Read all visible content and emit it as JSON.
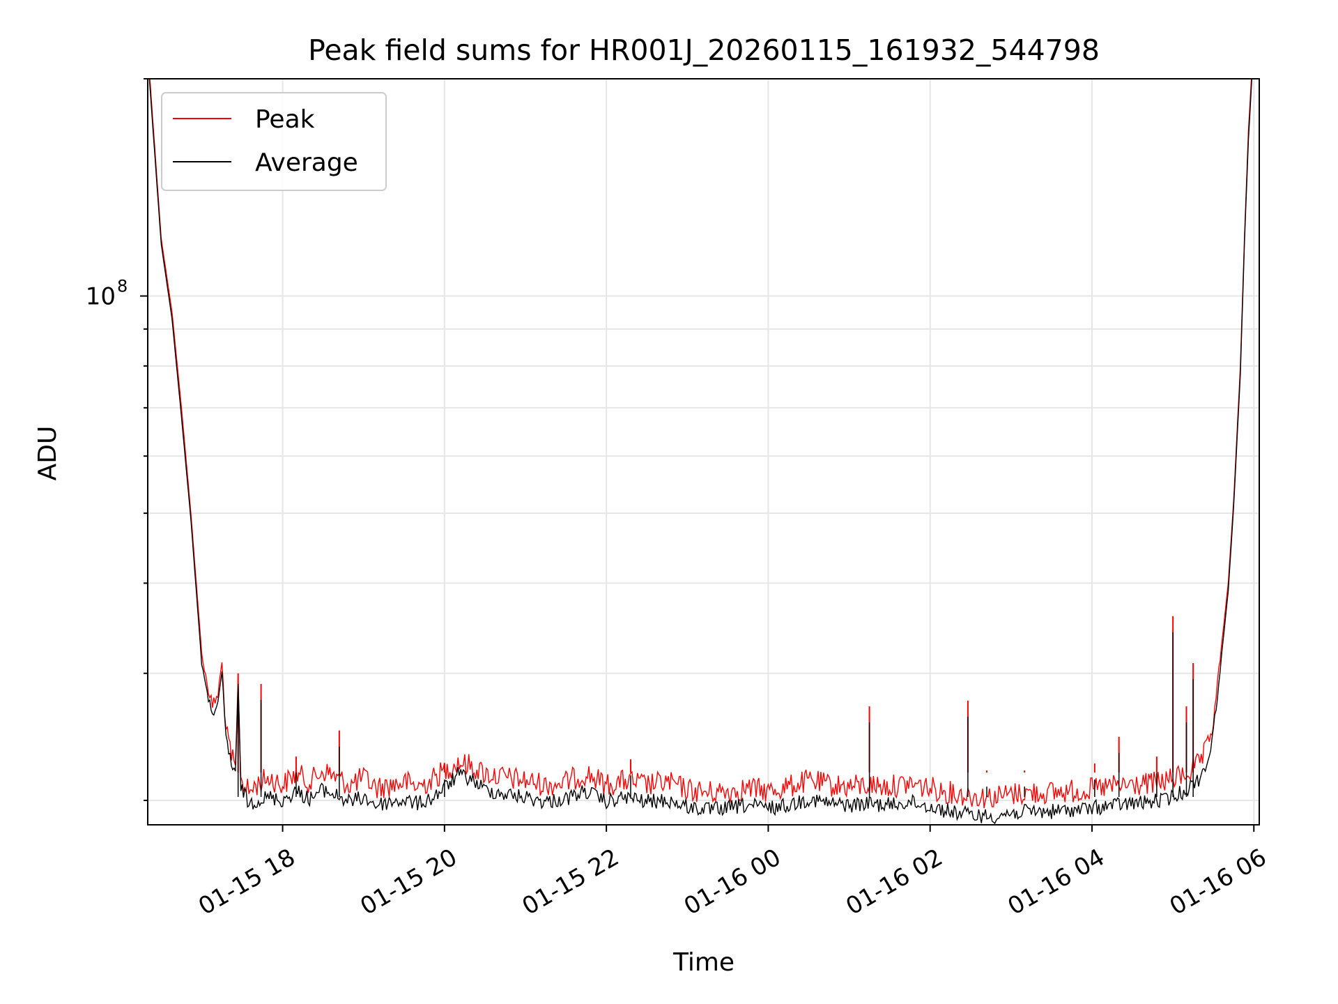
{
  "chart_data": {
    "type": "line",
    "title": "Peak field sums for HR001J_20260115_161932_544798",
    "xlabel": "Time",
    "ylabel": "ADU",
    "y_scale": "log",
    "ylim": [
      18500000,
      200000000
    ],
    "xlim": [
      "2026-01-15 16:20",
      "2026-01-16 06:04"
    ],
    "grid": true,
    "legend_position": "top-left",
    "x_ticks": [
      {
        "t": "2026-01-15 18:00",
        "label": "01-15 18"
      },
      {
        "t": "2026-01-15 20:00",
        "label": "01-15 20"
      },
      {
        "t": "2026-01-15 22:00",
        "label": "01-15 22"
      },
      {
        "t": "2026-01-16 00:00",
        "label": "01-16 00"
      },
      {
        "t": "2026-01-16 02:00",
        "label": "01-16 02"
      },
      {
        "t": "2026-01-16 04:00",
        "label": "01-16 04"
      },
      {
        "t": "2026-01-16 06:00",
        "label": "01-16 06"
      }
    ],
    "y_major_ticks": [
      {
        "value": 100000000,
        "base": "10",
        "exp": "8"
      }
    ],
    "y_minor_ticks": [
      20000000,
      30000000,
      40000000,
      50000000,
      60000000,
      70000000,
      80000000,
      90000000,
      200000000
    ],
    "series": [
      {
        "name": "Peak",
        "color": "#ff0000",
        "points": [
          [
            "2026-01-15 16:20",
            220000000
          ],
          [
            "2026-01-15 16:30",
            120000000
          ],
          [
            "2026-01-15 16:38",
            95000000
          ],
          [
            "2026-01-15 16:45",
            70000000
          ],
          [
            "2026-01-15 16:52",
            50000000
          ],
          [
            "2026-01-15 16:56",
            40000000
          ],
          [
            "2026-01-15 17:00",
            32000000
          ],
          [
            "2026-01-15 17:04",
            29000000
          ],
          [
            "2026-01-15 17:08",
            27000000
          ],
          [
            "2026-01-15 17:12",
            28000000
          ],
          [
            "2026-01-15 17:15",
            31000000
          ],
          [
            "2026-01-15 17:18",
            25000000
          ],
          [
            "2026-01-15 17:22",
            23000000
          ],
          [
            "2026-01-15 17:25",
            22000000
          ],
          [
            "2026-01-15 17:27",
            29500000
          ],
          [
            "2026-01-15 17:29",
            21500000
          ],
          [
            "2026-01-15 17:32",
            21000000
          ],
          [
            "2026-01-15 17:35",
            20500000
          ],
          [
            "2026-01-15 17:40",
            21000000
          ],
          [
            "2026-01-15 17:50",
            21500000
          ],
          [
            "2026-01-15 18:00",
            21000000
          ],
          [
            "2026-01-15 18:10",
            21800000
          ],
          [
            "2026-01-15 18:20",
            21200000
          ],
          [
            "2026-01-15 18:30",
            22000000
          ],
          [
            "2026-01-15 18:40",
            21500000
          ],
          [
            "2026-01-15 18:50",
            21000000
          ],
          [
            "2026-01-15 19:00",
            21500000
          ],
          [
            "2026-01-15 19:10",
            20800000
          ],
          [
            "2026-01-15 19:20",
            21000000
          ],
          [
            "2026-01-15 19:30",
            21200000
          ],
          [
            "2026-01-15 19:40",
            20900000
          ],
          [
            "2026-01-15 19:50",
            21300000
          ],
          [
            "2026-01-15 20:00",
            22000000
          ],
          [
            "2026-01-15 20:10",
            22600000
          ],
          [
            "2026-01-15 20:20",
            22300000
          ],
          [
            "2026-01-15 20:30",
            21800000
          ],
          [
            "2026-01-15 20:45",
            21500000
          ],
          [
            "2026-01-15 21:00",
            21300000
          ],
          [
            "2026-01-15 21:15",
            21000000
          ],
          [
            "2026-01-15 21:30",
            21200000
          ],
          [
            "2026-01-15 21:45",
            21800000
          ],
          [
            "2026-01-15 22:00",
            21000000
          ],
          [
            "2026-01-15 22:15",
            21300000
          ],
          [
            "2026-01-15 22:30",
            21000000
          ],
          [
            "2026-01-15 22:45",
            21200000
          ],
          [
            "2026-01-15 23:00",
            20700000
          ],
          [
            "2026-01-15 23:15",
            20500000
          ],
          [
            "2026-01-15 23:30",
            20600000
          ],
          [
            "2026-01-15 23:45",
            20800000
          ],
          [
            "2026-01-16 00:00",
            20600000
          ],
          [
            "2026-01-16 00:15",
            20900000
          ],
          [
            "2026-01-16 00:30",
            21300000
          ],
          [
            "2026-01-16 00:45",
            21000000
          ],
          [
            "2026-01-16 01:00",
            20900000
          ],
          [
            "2026-01-16 01:15",
            21000000
          ],
          [
            "2026-01-16 01:30",
            20900000
          ],
          [
            "2026-01-16 01:45",
            21100000
          ],
          [
            "2026-01-16 02:00",
            20800000
          ],
          [
            "2026-01-16 02:15",
            20500000
          ],
          [
            "2026-01-16 02:30",
            20300000
          ],
          [
            "2026-01-16 02:45",
            20200000
          ],
          [
            "2026-01-16 03:00",
            20400000
          ],
          [
            "2026-01-16 03:15",
            20500000
          ],
          [
            "2026-01-16 03:30",
            20500000
          ],
          [
            "2026-01-16 03:45",
            20600000
          ],
          [
            "2026-01-16 04:00",
            20700000
          ],
          [
            "2026-01-16 04:15",
            20900000
          ],
          [
            "2026-01-16 04:30",
            21000000
          ],
          [
            "2026-01-16 04:45",
            21100000
          ],
          [
            "2026-01-16 05:00",
            21400000
          ],
          [
            "2026-01-16 05:10",
            21800000
          ],
          [
            "2026-01-16 05:20",
            22500000
          ],
          [
            "2026-01-16 05:25",
            23500000
          ],
          [
            "2026-01-16 05:29",
            25000000
          ],
          [
            "2026-01-16 05:33",
            29000000
          ],
          [
            "2026-01-16 05:37",
            34000000
          ],
          [
            "2026-01-16 05:41",
            40000000
          ],
          [
            "2026-01-16 05:45",
            52000000
          ],
          [
            "2026-01-16 05:50",
            80000000
          ],
          [
            "2026-01-16 05:53",
            120000000
          ],
          [
            "2026-01-16 05:56",
            170000000
          ],
          [
            "2026-01-16 06:00",
            230000000
          ]
        ],
        "spikes": [
          [
            "2026-01-15 17:27",
            30000000
          ],
          [
            "2026-01-15 17:44",
            29000000
          ],
          [
            "2026-01-15 18:10",
            23000000
          ],
          [
            "2026-01-15 18:42",
            25000000
          ],
          [
            "2026-01-15 20:00",
            22500000
          ],
          [
            "2026-01-15 22:18",
            22800000
          ],
          [
            "2026-01-16 01:15",
            27000000
          ],
          [
            "2026-01-16 02:28",
            27500000
          ],
          [
            "2026-01-16 02:42",
            22000000
          ],
          [
            "2026-01-16 03:10",
            22000000
          ],
          [
            "2026-01-16 04:02",
            22500000
          ],
          [
            "2026-01-16 04:20",
            24500000
          ],
          [
            "2026-01-16 04:48",
            23000000
          ],
          [
            "2026-01-16 05:00",
            36000000
          ],
          [
            "2026-01-16 05:10",
            27000000
          ],
          [
            "2026-01-16 05:15",
            31000000
          ]
        ]
      },
      {
        "name": "Average",
        "color": "#000000",
        "points": [
          [
            "2026-01-15 16:20",
            215000000
          ],
          [
            "2026-01-15 16:30",
            118000000
          ],
          [
            "2026-01-15 16:38",
            93000000
          ],
          [
            "2026-01-15 16:45",
            68000000
          ],
          [
            "2026-01-15 16:52",
            49000000
          ],
          [
            "2026-01-15 16:56",
            39000000
          ],
          [
            "2026-01-15 17:00",
            31000000
          ],
          [
            "2026-01-15 17:04",
            28000000
          ],
          [
            "2026-01-15 17:08",
            26500000
          ],
          [
            "2026-01-15 17:12",
            27000000
          ],
          [
            "2026-01-15 17:15",
            30000000
          ],
          [
            "2026-01-15 17:18",
            24500000
          ],
          [
            "2026-01-15 17:22",
            22500000
          ],
          [
            "2026-01-15 17:25",
            21500000
          ],
          [
            "2026-01-15 17:27",
            29000000
          ],
          [
            "2026-01-15 17:29",
            21000000
          ],
          [
            "2026-01-15 17:32",
            20300000
          ],
          [
            "2026-01-15 17:35",
            19800000
          ],
          [
            "2026-01-15 17:40",
            20000000
          ],
          [
            "2026-01-15 17:50",
            20200000
          ],
          [
            "2026-01-15 18:00",
            20000000
          ],
          [
            "2026-01-15 18:10",
            20600000
          ],
          [
            "2026-01-15 18:20",
            20100000
          ],
          [
            "2026-01-15 18:30",
            20700000
          ],
          [
            "2026-01-15 18:40",
            20300000
          ],
          [
            "2026-01-15 18:50",
            19900000
          ],
          [
            "2026-01-15 19:00",
            20200000
          ],
          [
            "2026-01-15 19:10",
            19700000
          ],
          [
            "2026-01-15 19:20",
            19900000
          ],
          [
            "2026-01-15 19:30",
            20000000
          ],
          [
            "2026-01-15 19:40",
            19800000
          ],
          [
            "2026-01-15 19:50",
            20100000
          ],
          [
            "2026-01-15 20:00",
            20800000
          ],
          [
            "2026-01-15 20:10",
            21700000
          ],
          [
            "2026-01-15 20:20",
            21400000
          ],
          [
            "2026-01-15 20:30",
            20700000
          ],
          [
            "2026-01-15 20:45",
            20400000
          ],
          [
            "2026-01-15 21:00",
            20200000
          ],
          [
            "2026-01-15 21:15",
            19900000
          ],
          [
            "2026-01-15 21:30",
            20100000
          ],
          [
            "2026-01-15 21:45",
            20600000
          ],
          [
            "2026-01-15 22:00",
            19900000
          ],
          [
            "2026-01-15 22:15",
            20200000
          ],
          [
            "2026-01-15 22:30",
            19900000
          ],
          [
            "2026-01-15 22:45",
            20000000
          ],
          [
            "2026-01-15 23:00",
            19600000
          ],
          [
            "2026-01-15 23:15",
            19400000
          ],
          [
            "2026-01-15 23:30",
            19500000
          ],
          [
            "2026-01-15 23:45",
            19700000
          ],
          [
            "2026-01-16 00:00",
            19500000
          ],
          [
            "2026-01-16 00:15",
            19700000
          ],
          [
            "2026-01-16 00:30",
            20100000
          ],
          [
            "2026-01-16 00:45",
            19800000
          ],
          [
            "2026-01-16 01:00",
            19700000
          ],
          [
            "2026-01-16 01:15",
            19800000
          ],
          [
            "2026-01-16 01:30",
            19700000
          ],
          [
            "2026-01-16 01:45",
            19900000
          ],
          [
            "2026-01-16 02:00",
            19600000
          ],
          [
            "2026-01-16 02:15",
            19300000
          ],
          [
            "2026-01-16 02:30",
            19100000
          ],
          [
            "2026-01-16 02:45",
            19000000
          ],
          [
            "2026-01-16 03:00",
            19200000
          ],
          [
            "2026-01-16 03:15",
            19300000
          ],
          [
            "2026-01-16 03:30",
            19300000
          ],
          [
            "2026-01-16 03:45",
            19400000
          ],
          [
            "2026-01-16 04:00",
            19500000
          ],
          [
            "2026-01-16 04:15",
            19700000
          ],
          [
            "2026-01-16 04:30",
            19800000
          ],
          [
            "2026-01-16 04:45",
            19900000
          ],
          [
            "2026-01-16 05:00",
            20200000
          ],
          [
            "2026-01-16 05:10",
            20700000
          ],
          [
            "2026-01-16 05:20",
            21500000
          ],
          [
            "2026-01-16 05:25",
            22500000
          ],
          [
            "2026-01-16 05:29",
            24000000
          ],
          [
            "2026-01-16 05:33",
            28000000
          ],
          [
            "2026-01-16 05:37",
            33000000
          ],
          [
            "2026-01-16 05:41",
            39000000
          ],
          [
            "2026-01-16 05:45",
            51000000
          ],
          [
            "2026-01-16 05:50",
            78000000
          ],
          [
            "2026-01-16 05:53",
            118000000
          ],
          [
            "2026-01-16 05:56",
            165000000
          ],
          [
            "2026-01-16 06:00",
            225000000
          ]
        ]
      }
    ]
  }
}
